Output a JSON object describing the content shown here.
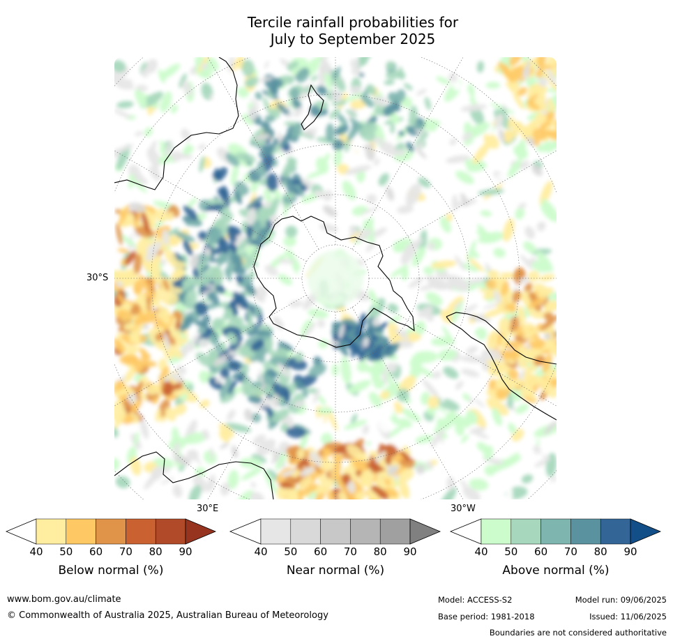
{
  "title_line1": "Tercile rainfall probabilities for",
  "title_line2": "July to September 2025",
  "map": {
    "lat_label": "30°S",
    "lon_label_east": "30°E",
    "lon_label_west": "30°W"
  },
  "colorbars": [
    {
      "title": "Below normal (%)",
      "ticks": [
        "40",
        "50",
        "60",
        "70",
        "80",
        "90"
      ],
      "colors": [
        "#ffeda0",
        "#fec965",
        "#e0944a",
        "#c96131",
        "#b04a28",
        "#973420"
      ]
    },
    {
      "title": "Near normal (%)",
      "ticks": [
        "40",
        "50",
        "60",
        "70",
        "80",
        "90"
      ],
      "colors": [
        "#e6e6e6",
        "#d9d9d9",
        "#c8c8c8",
        "#b5b5b5",
        "#a0a0a0",
        "#808080"
      ]
    },
    {
      "title": "Above normal (%)",
      "ticks": [
        "40",
        "50",
        "60",
        "70",
        "80",
        "90"
      ],
      "colors": [
        "#ccfccc",
        "#a7d8bd",
        "#7fb5af",
        "#5a92a0",
        "#336696",
        "#124e87"
      ]
    }
  ],
  "footer": {
    "website": "www.bom.gov.au/climate",
    "copyright": "© Commonwealth of Australia 2025, Australian Bureau of Meteorology",
    "model": "Model: ACCESS-S2",
    "model_run": "Model run: 09/06/2025",
    "base_period": "Base period: 1981-2018",
    "issued": "Issued: 11/06/2025",
    "disclaimer": "Boundaries are not considered authoritative"
  }
}
